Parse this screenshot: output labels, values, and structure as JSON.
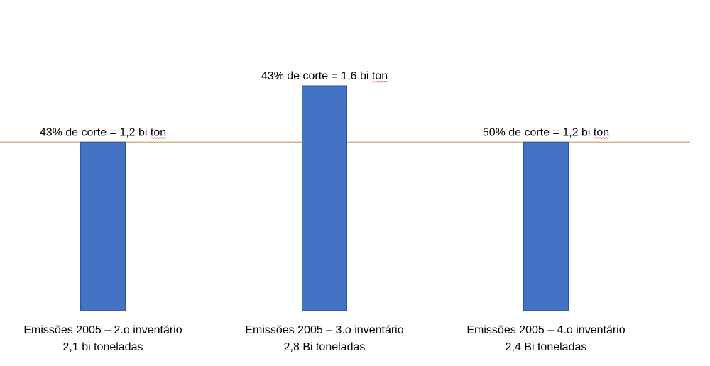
{
  "chart_data": {
    "type": "bar",
    "categories": [
      [
        "Emissões 2005 – 2.o inventário",
        "2,1 bi toneladas"
      ],
      [
        "Emissões 2005 – 3.o inventário",
        "2,8 Bi toneladas"
      ],
      [
        "Emissões 2005 – 4.o inventário",
        "2,4 Bi toneladas"
      ]
    ],
    "values": [
      1.2,
      1.6,
      1.2
    ],
    "data_labels": [
      [
        "43% de corte = 1,2 bi ",
        "ton"
      ],
      [
        "43% de corte = 1,6 bi ",
        "ton"
      ],
      [
        "50% de corte = 1,2 bi ",
        "ton"
      ]
    ],
    "reference_line": 1.2,
    "ylim": [
      0,
      1.87
    ],
    "title": "",
    "xlabel": "",
    "ylabel": "",
    "grid": false,
    "colors": {
      "bar": "#4472C4",
      "bar_edge": "#2F5597",
      "reference_line": "#D6A56B",
      "spell_squiggle": "#E0403A"
    }
  }
}
